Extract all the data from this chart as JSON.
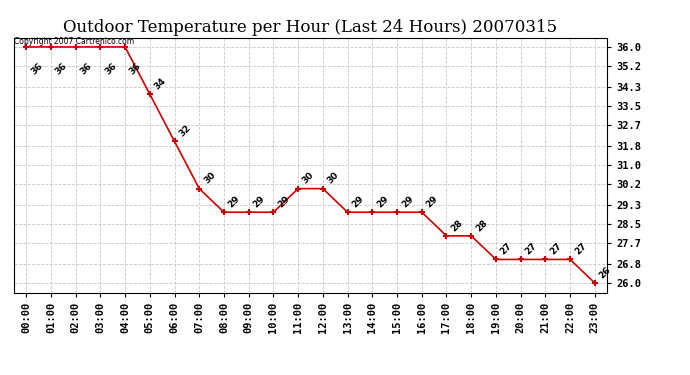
{
  "title": "Outdoor Temperature per Hour (Last 24 Hours) 20070315",
  "copyright_text": "Copyright 2007 Cartrenico.com",
  "hours": [
    0,
    1,
    2,
    3,
    4,
    5,
    6,
    7,
    8,
    9,
    10,
    11,
    12,
    13,
    14,
    15,
    16,
    17,
    18,
    19,
    20,
    21,
    22,
    23
  ],
  "temps": [
    36,
    36,
    36,
    36,
    36,
    34,
    32,
    30,
    29,
    29,
    29,
    30,
    30,
    29,
    29,
    29,
    29,
    28,
    28,
    27,
    27,
    27,
    27,
    26
  ],
  "x_labels": [
    "00:00",
    "01:00",
    "02:00",
    "03:00",
    "04:00",
    "05:00",
    "06:00",
    "07:00",
    "08:00",
    "09:00",
    "10:00",
    "11:00",
    "12:00",
    "13:00",
    "14:00",
    "15:00",
    "16:00",
    "17:00",
    "18:00",
    "19:00",
    "20:00",
    "21:00",
    "22:00",
    "23:00"
  ],
  "y_ticks": [
    26.0,
    26.8,
    27.7,
    28.5,
    29.3,
    30.2,
    31.0,
    31.8,
    32.7,
    33.5,
    34.3,
    35.2,
    36.0
  ],
  "ylim": [
    25.6,
    36.4
  ],
  "xlim": [
    -0.5,
    23.5
  ],
  "line_color": "#cc0000",
  "marker_color": "#cc0000",
  "bg_color": "#ffffff",
  "grid_color": "#c8c8c8",
  "title_fontsize": 12,
  "tick_fontsize": 7.5,
  "annot_fontsize": 6.5
}
